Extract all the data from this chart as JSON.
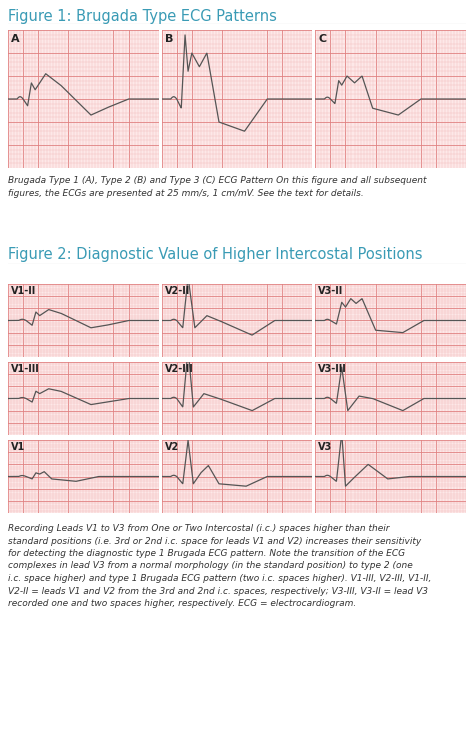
{
  "title1": "Figure 1: Brugada Type ECG Patterns",
  "title2": "Figure 2: Diagnostic Value of Higher Intercostal Positions",
  "caption1": "Brugada Type 1 (A), Type 2 (B) and Type 3 (C) ECG Pattern On this figure and all subsequent\nfigures, the ECGs are presented at 25 mm/s, 1 cm/mV. See the text for details.",
  "caption2": "Recording Leads V1 to V3 from One or Two Intercostal (i.c.) spaces higher than their\nstandard positions (i.e. 3rd or 2nd i.c. space for leads V1 and V2) increases their sensitivity\nfor detecting the diagnostic type 1 Brugada ECG pattern. Note the transition of the ECG\ncomplexes in lead V3 from a normal morphology (in the standard position) to type 2 (one\ni.c. space higher) and type 1 Brugada ECG pattern (two i.c. spaces higher). V1-III, V2-III, V1-II,\nV2-II = leads V1 and V2 from the 3rd and 2nd i.c. spaces, respectively; V3-III, V3-II = lead V3\nrecorded one and two spaces higher, respectively. ECG = electrocardiogram.",
  "fig1_labels": [
    "A",
    "B",
    "C"
  ],
  "fig2_labels_row1": [
    "V1-II",
    "V2-II",
    "V3-II"
  ],
  "fig2_labels_row2": [
    "V1-III",
    "V2-III",
    "V3-III"
  ],
  "fig2_labels_row3": [
    "V1",
    "V2",
    "V3"
  ],
  "ecg_grid_minor_color": "#f0b0b0",
  "ecg_grid_major_color": "#e08080",
  "ecg_bg_color": "#fde8e8",
  "title_color": "#3a9bb5",
  "ecg_line_color": "#555555",
  "text_color": "#333333",
  "border_color": "#aaaaaa",
  "bg_color": "#ffffff",
  "figsize": [
    4.74,
    7.31
  ],
  "dpi": 100
}
